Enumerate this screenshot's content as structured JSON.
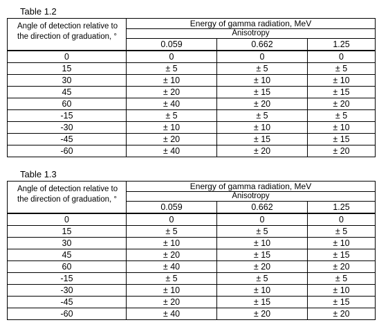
{
  "tables": [
    {
      "caption": "Table 1.2",
      "angle_header": "Angle of detection relative to the direction of graduation, °",
      "energy_header": "Energy of gamma radiation, MeV",
      "anisotropy_header": "Anisotropy",
      "columns": [
        "0.059",
        "0.662",
        "1.25"
      ],
      "rows": [
        {
          "angle": "0",
          "values": [
            "0",
            "0",
            "0"
          ]
        },
        {
          "angle": "15",
          "values": [
            "± 5",
            "± 5",
            "± 5"
          ]
        },
        {
          "angle": "30",
          "values": [
            "± 10",
            "± 10",
            "± 10"
          ]
        },
        {
          "angle": "45",
          "values": [
            "± 20",
            "± 15",
            "± 15"
          ]
        },
        {
          "angle": "60",
          "values": [
            "± 40",
            "± 20",
            "± 20"
          ]
        },
        {
          "angle": "-15",
          "values": [
            "± 5",
            "± 5",
            "± 5"
          ]
        },
        {
          "angle": "-30",
          "values": [
            "± 10",
            "± 10",
            "± 10"
          ]
        },
        {
          "angle": "-45",
          "values": [
            "± 20",
            "± 15",
            "± 15"
          ]
        },
        {
          "angle": "-60",
          "values": [
            "± 40",
            "± 20",
            "± 20"
          ]
        }
      ]
    },
    {
      "caption": "Table 1.3",
      "angle_header": "Angle of detection relative to the direction of graduation, °",
      "energy_header": "Energy of gamma radiation, MeV",
      "anisotropy_header": "Anisotropy",
      "columns": [
        "0.059",
        "0.662",
        "1.25"
      ],
      "rows": [
        {
          "angle": "0",
          "values": [
            "0",
            "0",
            "0"
          ]
        },
        {
          "angle": "15",
          "values": [
            "± 5",
            "± 5",
            "± 5"
          ]
        },
        {
          "angle": "30",
          "values": [
            "± 10",
            "± 10",
            "± 10"
          ]
        },
        {
          "angle": "45",
          "values": [
            "± 20",
            "± 15",
            "± 15"
          ]
        },
        {
          "angle": "60",
          "values": [
            "± 40",
            "± 20",
            "± 20"
          ]
        },
        {
          "angle": "-15",
          "values": [
            "± 5",
            "± 5",
            "± 5"
          ]
        },
        {
          "angle": "-30",
          "values": [
            "± 10",
            "± 10",
            "± 10"
          ]
        },
        {
          "angle": "-45",
          "values": [
            "± 20",
            "± 15",
            "± 15"
          ]
        },
        {
          "angle": "-60",
          "values": [
            "± 40",
            "± 20",
            "± 20"
          ]
        }
      ]
    }
  ]
}
